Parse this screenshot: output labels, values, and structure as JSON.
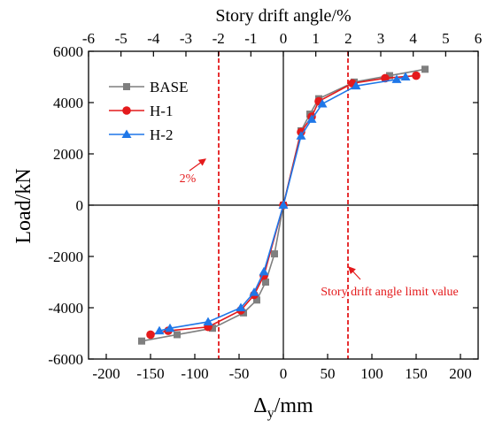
{
  "chart_data": {
    "type": "line",
    "title": "",
    "xlabel_main": "Δ",
    "xlabel_sub": "y",
    "xlabel_unit": "/mm",
    "ylabel": "Load/kN",
    "top_xlabel": "Story drift angle/%",
    "xlim": [
      -220,
      220
    ],
    "ylim": [
      -6000,
      6000
    ],
    "x_ticks": [
      -200,
      -150,
      -100,
      -50,
      0,
      50,
      100,
      150,
      200
    ],
    "y_ticks": [
      -6000,
      -4000,
      -2000,
      0,
      2000,
      4000,
      6000
    ],
    "top_ticks": [
      -6,
      -5,
      -4,
      -3,
      -2,
      -1,
      0,
      1,
      2,
      3,
      4,
      5,
      6
    ],
    "top_scale_mm_per_percent": 36.67,
    "grid": false,
    "legend_position": "top-left",
    "series": [
      {
        "name": "BASE",
        "color": "#7f7f7f",
        "marker": "square",
        "x": [
          -160,
          -120,
          -80,
          -45,
          -30,
          -20,
          -10,
          0,
          20,
          30,
          40,
          80,
          120,
          160
        ],
        "y": [
          -5300,
          -5050,
          -4800,
          -4200,
          -3700,
          -3000,
          -1900,
          0,
          2900,
          3550,
          4150,
          4800,
          5050,
          5300
        ]
      },
      {
        "name": "H-1",
        "color": "#e41a1c",
        "marker": "circle",
        "x": [
          -150,
          -130,
          -85,
          -48,
          -33,
          -22,
          0,
          20,
          32,
          40,
          78,
          115,
          150
        ],
        "y": [
          -5050,
          -4900,
          -4750,
          -4100,
          -3500,
          -2750,
          0,
          2850,
          3450,
          4050,
          4750,
          4950,
          5050
        ]
      },
      {
        "name": "H-2",
        "color": "#1f77e8",
        "marker": "triangle",
        "x": [
          -140,
          -128,
          -85,
          -48,
          -33,
          -22,
          0,
          20,
          32,
          44,
          82,
          128,
          138
        ],
        "y": [
          -4900,
          -4800,
          -4550,
          -4000,
          -3400,
          -2600,
          0,
          2700,
          3350,
          3950,
          4650,
          4900,
          5000
        ]
      }
    ],
    "reference_lines": [
      {
        "x": -73,
        "color": "#e41a1c",
        "style": "dashed"
      },
      {
        "x": 73,
        "color": "#e41a1c",
        "style": "dashed"
      }
    ],
    "annotations": [
      {
        "text": "2%"
      },
      {
        "text": "Story drift angle limit value"
      }
    ]
  }
}
